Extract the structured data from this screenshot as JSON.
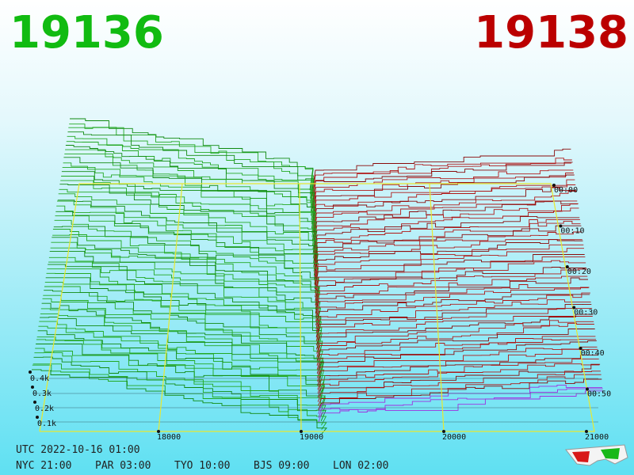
{
  "header": {
    "bid": "19136",
    "ask": "19138"
  },
  "price_axis": [
    "18000",
    "19000",
    "20000",
    "21000"
  ],
  "depth_axis": [
    "0.4k",
    "0.3k",
    "0.2k",
    "0.1k"
  ],
  "time_axis": [
    "00:00",
    "00:10",
    "00:20",
    "00:30",
    "00:40",
    "00:50"
  ],
  "footer": {
    "utc": "UTC 2022-10-16 01:00",
    "clocks": [
      "NYC 21:00",
      "PAR 03:00",
      "TYO 10:00",
      "BJS 09:00",
      "LON 02:00"
    ]
  }
}
